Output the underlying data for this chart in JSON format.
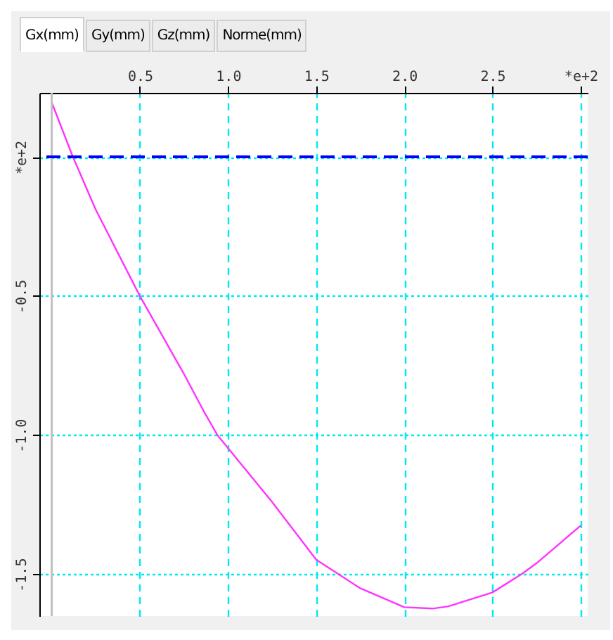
{
  "chart_data": {
    "type": "line",
    "annotations": [
      "Gx(mm)",
      "Gy(mm)",
      "Gz(mm)",
      "Norme(mm)"
    ],
    "x": [
      0,
      0.12,
      0.25,
      0.5,
      0.75,
      0.86,
      0.94,
      1.25,
      1.5,
      1.75,
      2.0,
      2.16,
      2.25,
      2.5,
      2.67,
      2.75,
      3.0
    ],
    "series": [
      {
        "color": "#ff33ff",
        "values": [
          0.196,
          0,
          -0.19,
          -0.5,
          -0.78,
          -0.911,
          -1.0,
          -1.24,
          -1.447,
          -1.55,
          -1.618,
          -1.623,
          -1.615,
          -1.565,
          -1.497,
          -1.46,
          -1.325
        ]
      }
    ],
    "xlim": [
      -0.07,
      3.04
    ],
    "ylim": [
      -1.65,
      0.23
    ],
    "xticks": [
      0.5,
      {
        "value": 1,
        "label": "1.0"
      },
      1.5,
      {
        "value": 2,
        "label": "2.0"
      },
      2.5,
      {
        "value": 3,
        "label": "*e+2"
      }
    ],
    "yticks": [
      {
        "value": 0,
        "label": "*e+2"
      },
      -0.5,
      {
        "value": -1,
        "label": "-1.0"
      },
      -1.5
    ],
    "ref_lines": [
      {
        "axis": "y",
        "value": 0,
        "color": "#0000ff",
        "line_style": "dashed"
      },
      {
        "axis": "x",
        "value": 0,
        "color": "#c0c0c0",
        "line_style": "solid"
      }
    ],
    "grid": true,
    "marker": "none"
  }
}
